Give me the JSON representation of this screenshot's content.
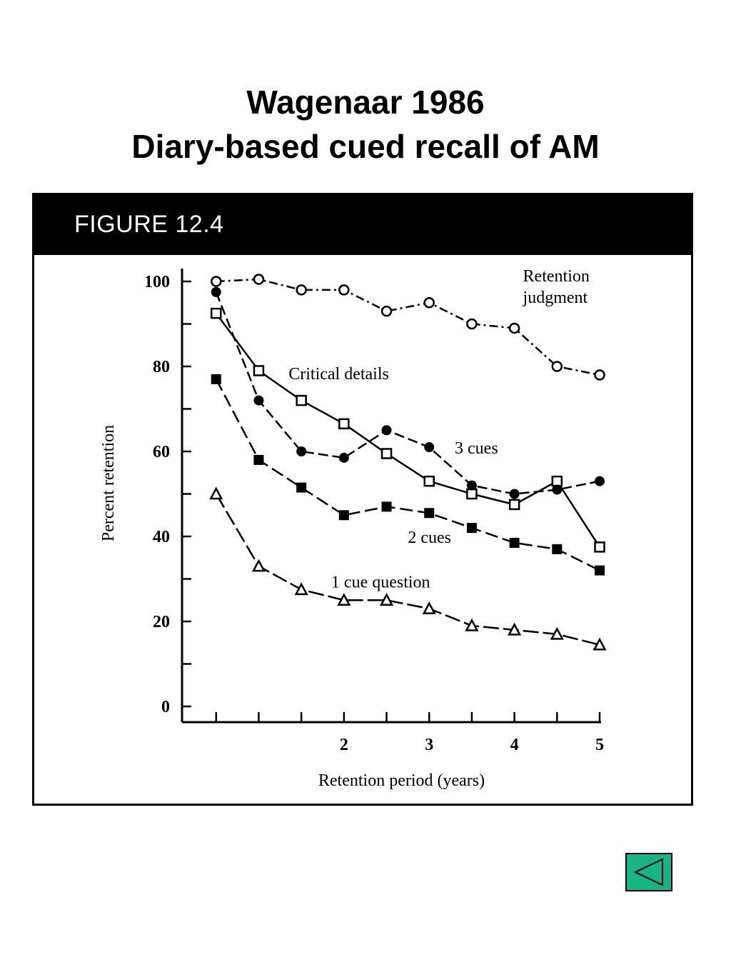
{
  "slide": {
    "title_line1": "Wagenaar 1986",
    "title_line2": "Diary-based cued recall of AM"
  },
  "figure": {
    "label": "FIGURE 12.4"
  },
  "nav": {
    "back_icon": "back-triangle-icon",
    "color": "#19b386"
  },
  "chart_data": {
    "type": "line",
    "xlabel": "Retention period (years)",
    "ylabel": "Percent retention",
    "xlim": [
      0.1,
      5
    ],
    "ylim": [
      0,
      100
    ],
    "x_ticks": [
      0.5,
      1,
      1.5,
      2,
      2.5,
      3,
      3.5,
      4,
      4.5,
      5
    ],
    "x_tick_labels": [
      {
        "x": 2,
        "label": "2"
      },
      {
        "x": 3,
        "label": "3"
      },
      {
        "x": 4,
        "label": "4"
      },
      {
        "x": 5,
        "label": "5"
      }
    ],
    "y_ticks": [
      0,
      10,
      20,
      30,
      40,
      50,
      60,
      70,
      80,
      90,
      100
    ],
    "y_tick_labels": [
      {
        "y": 0,
        "label": "0"
      },
      {
        "y": 20,
        "label": "20"
      },
      {
        "y": 40,
        "label": "40"
      },
      {
        "y": 60,
        "label": "60"
      },
      {
        "y": 80,
        "label": "80"
      },
      {
        "y": 100,
        "label": "100"
      }
    ],
    "x": [
      0.5,
      1,
      1.5,
      2,
      2.5,
      3,
      3.5,
      4,
      4.5,
      5
    ],
    "series": [
      {
        "name": "Retention judgment",
        "label_lines": [
          "Retention",
          "judgment"
        ],
        "label_at": {
          "x": 4.1,
          "y": 100
        },
        "marker": "circle-open",
        "dash": "12 5 3 5",
        "values": [
          100,
          100.5,
          98,
          98,
          93,
          95,
          90,
          89,
          80,
          78
        ]
      },
      {
        "name": "Critical details",
        "label_lines": [
          "Critical details"
        ],
        "label_at": {
          "x": 1.35,
          "y": 77
        },
        "marker": "square-open",
        "dash": "",
        "values": [
          92.5,
          79,
          72,
          66.5,
          59.5,
          53,
          50,
          47.5,
          53,
          37.5
        ]
      },
      {
        "name": "3 cues",
        "label_lines": [
          "3 cues"
        ],
        "label_at": {
          "x": 3.3,
          "y": 59.5
        },
        "marker": "circle-filled",
        "dash": "14 6",
        "values": [
          97.5,
          72,
          60,
          58.5,
          65,
          61,
          52,
          50,
          51,
          53
        ]
      },
      {
        "name": "2 cues",
        "label_lines": [
          "2 cues"
        ],
        "label_at": {
          "x": 2.75,
          "y": 38.5
        },
        "marker": "square-filled",
        "dash": "18 7",
        "values": [
          77,
          58,
          51.5,
          45,
          47,
          45.5,
          42,
          38.5,
          37,
          32
        ]
      },
      {
        "name": "1 cue question",
        "label_lines": [
          "1 cue question"
        ],
        "label_at": {
          "x": 1.85,
          "y": 28
        },
        "marker": "triangle-open",
        "dash": "22 6",
        "values": [
          50,
          33,
          27.5,
          25,
          25,
          23,
          19,
          18,
          17,
          14.5
        ]
      }
    ]
  }
}
